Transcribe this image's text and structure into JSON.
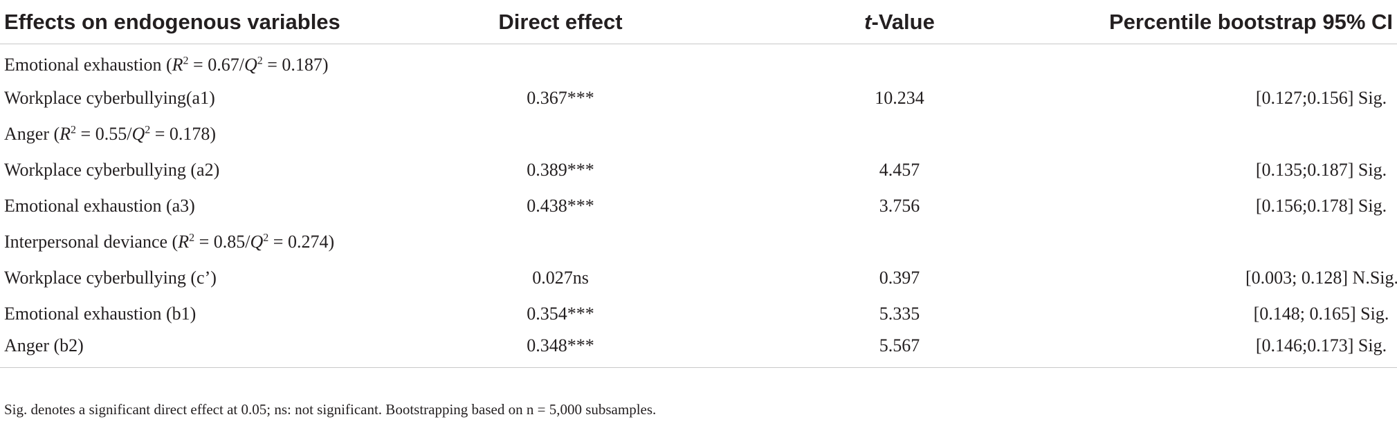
{
  "table": {
    "headers": {
      "col1": "Effects on endogenous variables",
      "col2": "Direct effect",
      "col3_italic": "t",
      "col3_rest": "-Value",
      "col4": "Percentile bootstrap 95% CI"
    },
    "groups": [
      {
        "name": "Emotional exhaustion",
        "r2": "0.67",
        "q2": "0.187",
        "rows": [
          {
            "label": "Workplace cyberbullying(a1)",
            "effect": "0.367***",
            "t": "10.234",
            "ci": "[0.127;0.156] Sig."
          }
        ]
      },
      {
        "name": "Anger",
        "r2": "0.55",
        "q2": "0.178",
        "rows": [
          {
            "label": "Workplace cyberbullying (a2)",
            "effect": "0.389***",
            "t": "4.457",
            "ci": "[0.135;0.187] Sig."
          },
          {
            "label": "Emotional exhaustion (a3)",
            "effect": "0.438***",
            "t": "3.756",
            "ci": "[0.156;0.178] Sig."
          }
        ]
      },
      {
        "name": "Interpersonal deviance",
        "r2": "0.85",
        "q2": "0.274",
        "rows": [
          {
            "label": "Workplace cyberbullying (c’)",
            "effect": "0.027ns",
            "t": "0.397",
            "ci": "[0.003; 0.128] N.Sig."
          },
          {
            "label": "Emotional exhaustion (b1)",
            "effect": "0.354***",
            "t": "5.335",
            "ci": "[0.148; 0.165] Sig."
          },
          {
            "label": "Anger (b2)",
            "effect": "0.348***",
            "t": "5.567",
            "ci": "[0.146;0.173] Sig."
          }
        ]
      }
    ],
    "stat_labels": {
      "r": "R",
      "q": "Q",
      "exp": "2",
      "eq": " = ",
      "sep": "/",
      "open": " (",
      "close": ")"
    },
    "footnote": "Sig. denotes a significant direct effect at 0.05; ns: not significant. Bootstrapping based on n = 5,000 subsamples."
  }
}
